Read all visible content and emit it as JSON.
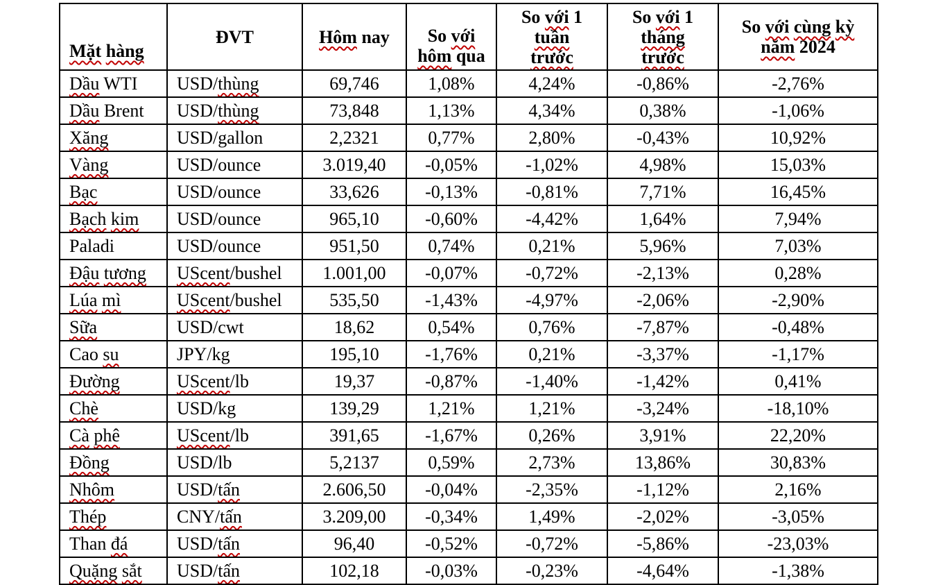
{
  "chart_data": {
    "type": "table",
    "title": "",
    "columns": [
      {
        "label": "Mặt hàng",
        "lines": [
          "Mặt hàng"
        ],
        "wavy": [
          "Mặt",
          "hàng"
        ]
      },
      {
        "label": "ĐVT",
        "lines": [
          "ĐVT"
        ],
        "wavy": []
      },
      {
        "label": "Hôm nay",
        "lines": [
          "Hôm nay"
        ],
        "wavy": [
          "Hôm"
        ]
      },
      {
        "label": "So với hôm qua",
        "lines": [
          "So với",
          "hôm qua"
        ],
        "wavy": [
          "với",
          "hôm"
        ]
      },
      {
        "label": "So với 1 tuần trước",
        "lines": [
          "So với 1",
          "tuần",
          "trước"
        ],
        "wavy": [
          "với",
          "tuần",
          "trước"
        ]
      },
      {
        "label": "So với 1 tháng trước",
        "lines": [
          "So với 1",
          "tháng",
          "trước"
        ],
        "wavy": [
          "với",
          "tháng",
          "trước"
        ]
      },
      {
        "label": "So với cùng kỳ năm 2024",
        "lines": [
          "So với cùng kỳ",
          "năm 2024"
        ],
        "wavy": [
          "với",
          "cùng",
          "kỳ",
          "năm"
        ]
      }
    ],
    "rows": [
      {
        "commodity": {
          "text": "Dầu WTI",
          "wavy": [
            "Dầu"
          ]
        },
        "unit": {
          "text": "USD/thùng",
          "wavy": [
            "thùng"
          ]
        },
        "values": [
          "69,746",
          "1,08%",
          "4,24%",
          "-0,86%",
          "-2,76%"
        ]
      },
      {
        "commodity": {
          "text": "Dầu Brent",
          "wavy": [
            "Dầu"
          ]
        },
        "unit": {
          "text": "USD/thùng",
          "wavy": [
            "thùng"
          ]
        },
        "values": [
          "73,848",
          "1,13%",
          "4,34%",
          "0,38%",
          "-1,06%"
        ]
      },
      {
        "commodity": {
          "text": "Xăng",
          "wavy": [
            "Xăng"
          ]
        },
        "unit": {
          "text": "USD/gallon",
          "wavy": []
        },
        "values": [
          "2,2321",
          "0,77%",
          "2,80%",
          "-0,43%",
          "10,92%"
        ]
      },
      {
        "commodity": {
          "text": "Vàng",
          "wavy": [
            "Vàng"
          ]
        },
        "unit": {
          "text": "USD/ounce",
          "wavy": []
        },
        "values": [
          "3.019,40",
          "-0,05%",
          "-1,02%",
          "4,98%",
          "15,03%"
        ]
      },
      {
        "commodity": {
          "text": "Bạc",
          "wavy": [
            "Bạc"
          ]
        },
        "unit": {
          "text": "USD/ounce",
          "wavy": []
        },
        "values": [
          "33,626",
          "-0,13%",
          "-0,81%",
          "7,71%",
          "16,45%"
        ]
      },
      {
        "commodity": {
          "text": "Bạch kim",
          "wavy": [
            "Bạch",
            "kim"
          ]
        },
        "unit": {
          "text": "USD/ounce",
          "wavy": []
        },
        "values": [
          "965,10",
          "-0,60%",
          "-4,42%",
          "1,64%",
          "7,94%"
        ]
      },
      {
        "commodity": {
          "text": "Paladi",
          "wavy": []
        },
        "unit": {
          "text": "USD/ounce",
          "wavy": []
        },
        "values": [
          "951,50",
          "0,74%",
          "0,21%",
          "5,96%",
          "7,03%"
        ]
      },
      {
        "commodity": {
          "text": "Đậu tương",
          "wavy": [
            "Đậu",
            "tương"
          ]
        },
        "unit": {
          "text": "UScent/bushel",
          "wavy": [
            "UScent"
          ]
        },
        "values": [
          "1.001,00",
          "-0,07%",
          "-0,72%",
          "-2,13%",
          "0,28%"
        ]
      },
      {
        "commodity": {
          "text": "Lúa mì",
          "wavy": [
            "Lúa",
            "mì"
          ]
        },
        "unit": {
          "text": "UScent/bushel",
          "wavy": [
            "UScent"
          ]
        },
        "values": [
          "535,50",
          "-1,43%",
          "-4,97%",
          "-2,06%",
          "-2,90%"
        ]
      },
      {
        "commodity": {
          "text": "Sữa",
          "wavy": [
            "Sữa"
          ]
        },
        "unit": {
          "text": "USD/cwt",
          "wavy": []
        },
        "values": [
          "18,62",
          "0,54%",
          "0,76%",
          "-7,87%",
          "-0,48%"
        ]
      },
      {
        "commodity": {
          "text": "Cao su",
          "wavy": [
            "su"
          ]
        },
        "unit": {
          "text": "JPY/kg",
          "wavy": []
        },
        "values": [
          "195,10",
          "-1,76%",
          "0,21%",
          "-3,37%",
          "-1,17%"
        ]
      },
      {
        "commodity": {
          "text": "Đường",
          "wavy": [
            "Đường"
          ]
        },
        "unit": {
          "text": "UScent/lb",
          "wavy": [
            "UScent"
          ]
        },
        "values": [
          "19,37",
          "-0,87%",
          "-1,40%",
          "-1,42%",
          "0,41%"
        ]
      },
      {
        "commodity": {
          "text": "Chè",
          "wavy": [
            "Chè"
          ]
        },
        "unit": {
          "text": "USD/kg",
          "wavy": []
        },
        "values": [
          "139,29",
          "1,21%",
          "1,21%",
          "-3,24%",
          "-18,10%"
        ]
      },
      {
        "commodity": {
          "text": "Cà phê",
          "wavy": [
            "Cà",
            "phê"
          ]
        },
        "unit": {
          "text": "UScent/lb",
          "wavy": [
            "UScent"
          ]
        },
        "values": [
          "391,65",
          "-1,67%",
          "0,26%",
          "3,91%",
          "22,20%"
        ]
      },
      {
        "commodity": {
          "text": "Đồng",
          "wavy": [
            "Đồng"
          ]
        },
        "unit": {
          "text": "USD/lb",
          "wavy": []
        },
        "values": [
          "5,2137",
          "0,59%",
          "2,73%",
          "13,86%",
          "30,83%"
        ]
      },
      {
        "commodity": {
          "text": "Nhôm",
          "wavy": [
            "Nhôm"
          ]
        },
        "unit": {
          "text": "USD/tấn",
          "wavy": [
            "tấn"
          ]
        },
        "values": [
          "2.606,50",
          "-0,04%",
          "-2,35%",
          "-1,12%",
          "2,16%"
        ]
      },
      {
        "commodity": {
          "text": "Thép",
          "wavy": [
            "Thép"
          ]
        },
        "unit": {
          "text": "CNY/tấn",
          "wavy": [
            "tấn"
          ]
        },
        "values": [
          "3.209,00",
          "-0,34%",
          "1,49%",
          "-2,02%",
          "-3,05%"
        ]
      },
      {
        "commodity": {
          "text": "Than đá",
          "wavy": [
            "đá"
          ]
        },
        "unit": {
          "text": "USD/tấn",
          "wavy": [
            "tấn"
          ]
        },
        "values": [
          "96,40",
          "-0,52%",
          "-0,72%",
          "-5,86%",
          "-23,03%"
        ]
      },
      {
        "commodity": {
          "text": "Quặng sắt",
          "wavy": [
            "Quặng",
            "sắt"
          ]
        },
        "unit": {
          "text": "USD/tấn",
          "wavy": [
            "tấn"
          ]
        },
        "values": [
          "102,18",
          "-0,03%",
          "-0,23%",
          "-4,64%",
          "-1,38%"
        ]
      }
    ]
  },
  "colors": {
    "text": "#000000",
    "table_border": "#000000",
    "spellcheck_red": "#c00000",
    "page_background": "#ffffff"
  }
}
